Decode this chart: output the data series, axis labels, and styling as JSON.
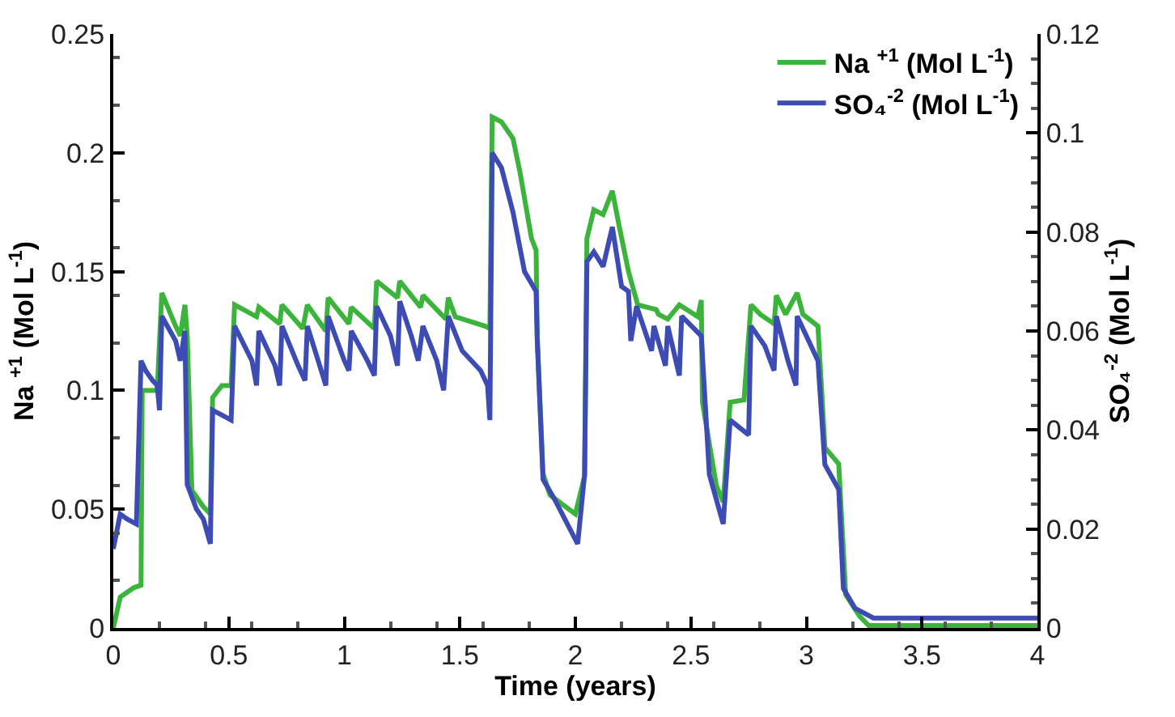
{
  "chart_data": {
    "type": "line",
    "xlabel": "Time (years)",
    "ylabel": "Na $^{+1}$ (Mol L$^{-1}$)",
    "y2label": "SO₄$^{-2}$ (Mol L$^{-1}$)",
    "xlim": [
      0,
      4
    ],
    "xticks": [
      0,
      0.5,
      1,
      1.5,
      2,
      2.5,
      3,
      3.5,
      4
    ],
    "ylim": [
      0,
      0.25
    ],
    "yticks": [
      0,
      0.05,
      0.1,
      0.15,
      0.2,
      0.25
    ],
    "y2lim": [
      0,
      0.12
    ],
    "y2ticks": [
      0,
      0.02,
      0.04,
      0.06,
      0.08,
      0.1,
      0.12
    ],
    "grid": false,
    "legend": "top right",
    "marker": "none",
    "line_style": "solid",
    "series": [
      {
        "name": "Na $^{+1}$ (Mol L$^{-1}$)",
        "color": "#3cb43c",
        "x": [
          0,
          0.03,
          0.09,
          0.12,
          0.125,
          0.19,
          0.21,
          0.27,
          0.29,
          0.31,
          0.32,
          0.34,
          0.39,
          0.42,
          0.43,
          0.47,
          0.51,
          0.525,
          0.62,
          0.63,
          0.72,
          0.73,
          0.82,
          0.84,
          0.92,
          0.93,
          1.02,
          1.03,
          1.13,
          1.14,
          1.23,
          1.24,
          1.33,
          1.34,
          1.44,
          1.45,
          1.48,
          1.61,
          1.63,
          1.64,
          1.68,
          1.73,
          1.76,
          1.81,
          1.83,
          1.835,
          1.86,
          1.89,
          2.0,
          2.04,
          2.05,
          2.08,
          2.12,
          2.16,
          2.19,
          2.23,
          2.27,
          2.35,
          2.36,
          2.4,
          2.45,
          2.53,
          2.545,
          2.55,
          2.61,
          2.64,
          2.67,
          2.73,
          2.76,
          2.8,
          2.86,
          2.87,
          2.91,
          2.96,
          2.985,
          3.05,
          3.08,
          3.14,
          3.17,
          3.23,
          3.27,
          4.0
        ],
        "values": [
          0,
          0.013,
          0.017,
          0.018,
          0.1,
          0.1,
          0.141,
          0.127,
          0.123,
          0.136,
          0.123,
          0.058,
          0.051,
          0.048,
          0.097,
          0.102,
          0.102,
          0.136,
          0.131,
          0.135,
          0.128,
          0.136,
          0.126,
          0.136,
          0.125,
          0.139,
          0.128,
          0.135,
          0.126,
          0.146,
          0.139,
          0.146,
          0.135,
          0.14,
          0.13,
          0.139,
          0.131,
          0.127,
          0.126,
          0.215,
          0.213,
          0.206,
          0.192,
          0.164,
          0.159,
          0.123,
          0.065,
          0.056,
          0.048,
          0.064,
          0.164,
          0.176,
          0.174,
          0.184,
          0.169,
          0.15,
          0.136,
          0.134,
          0.132,
          0.13,
          0.136,
          0.131,
          0.138,
          0.095,
          0.06,
          0.053,
          0.095,
          0.096,
          0.136,
          0.132,
          0.128,
          0.14,
          0.132,
          0.141,
          0.132,
          0.127,
          0.076,
          0.069,
          0.014,
          0.005,
          0.001,
          0.001
        ]
      },
      {
        "name": "SO₄$^{-2}$ (Mol L$^{-1}$)",
        "color": "#3c4cb4",
        "axis": "y2",
        "x": [
          0,
          0.03,
          0.06,
          0.1,
          0.12,
          0.14,
          0.17,
          0.19,
          0.2,
          0.21,
          0.27,
          0.29,
          0.31,
          0.32,
          0.36,
          0.39,
          0.42,
          0.43,
          0.47,
          0.51,
          0.525,
          0.6,
          0.62,
          0.63,
          0.7,
          0.72,
          0.73,
          0.8,
          0.83,
          0.84,
          0.9,
          0.92,
          0.93,
          1.0,
          1.02,
          1.03,
          1.1,
          1.13,
          1.14,
          1.2,
          1.23,
          1.24,
          1.29,
          1.32,
          1.34,
          1.4,
          1.43,
          1.45,
          1.51,
          1.59,
          1.62,
          1.63,
          1.64,
          1.68,
          1.73,
          1.78,
          1.83,
          1.835,
          1.86,
          1.91,
          2.01,
          2.04,
          2.05,
          2.08,
          2.12,
          2.16,
          2.2,
          2.23,
          2.24,
          2.265,
          2.33,
          2.34,
          2.39,
          2.4,
          2.45,
          2.46,
          2.545,
          2.58,
          2.64,
          2.67,
          2.75,
          2.76,
          2.82,
          2.86,
          2.87,
          2.92,
          2.955,
          2.96,
          3.05,
          3.08,
          3.14,
          3.16,
          3.21,
          3.29,
          4.0
        ],
        "values": [
          0.016,
          0.023,
          0.022,
          0.021,
          0.054,
          0.052,
          0.05,
          0.049,
          0.044,
          0.063,
          0.058,
          0.054,
          0.06,
          0.029,
          0.024,
          0.022,
          0.017,
          0.044,
          0.043,
          0.042,
          0.061,
          0.054,
          0.049,
          0.06,
          0.053,
          0.049,
          0.061,
          0.053,
          0.05,
          0.061,
          0.052,
          0.049,
          0.063,
          0.054,
          0.052,
          0.06,
          0.054,
          0.051,
          0.065,
          0.059,
          0.053,
          0.066,
          0.059,
          0.054,
          0.061,
          0.054,
          0.048,
          0.063,
          0.056,
          0.052,
          0.049,
          0.042,
          0.096,
          0.093,
          0.084,
          0.072,
          0.068,
          0.058,
          0.03,
          0.026,
          0.017,
          0.031,
          0.074,
          0.076,
          0.073,
          0.081,
          0.069,
          0.068,
          0.058,
          0.065,
          0.056,
          0.061,
          0.053,
          0.061,
          0.051,
          0.063,
          0.059,
          0.031,
          0.021,
          0.042,
          0.039,
          0.061,
          0.057,
          0.052,
          0.063,
          0.054,
          0.049,
          0.063,
          0.054,
          0.033,
          0.028,
          0.008,
          0.004,
          0.002,
          0.002
        ]
      }
    ]
  }
}
